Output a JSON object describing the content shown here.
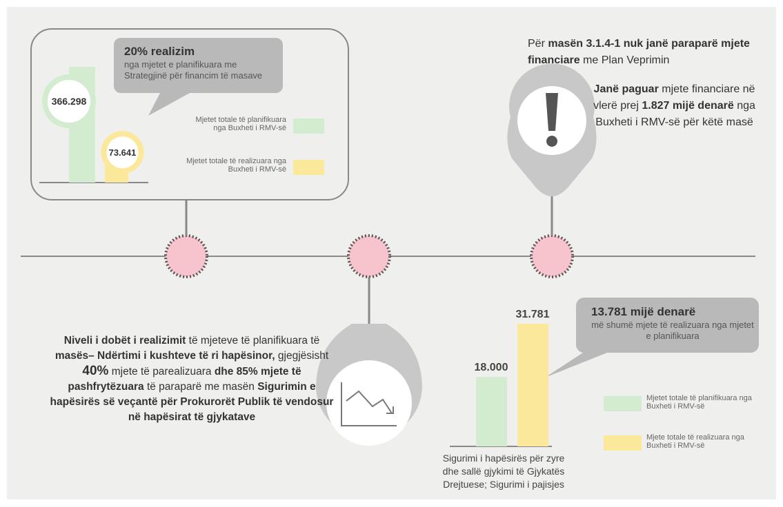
{
  "left_panel": {
    "callout_title": "20% realizim",
    "callout_text": "nga mjetet e planifikuara me Strategjinë për financim të masave",
    "bars": [
      {
        "name": "Mjetet totale të planifikuara nga Buxheti i RMV-së",
        "value": 366298,
        "value_label": "366.298",
        "color": "#d3ebcf"
      },
      {
        "name": "Mjetet totale të realizuara nga Buxheti i RMV-së",
        "value": 73641,
        "value_label": "73.641",
        "color": "#fbe89a"
      }
    ]
  },
  "top_right": {
    "line1": [
      "Për",
      "masën 3.1.4-1 nuk janë paraparë mjete financiare",
      "me Plan Veprimin"
    ],
    "line2": [
      "Janë paguar",
      "mjete financiare në vlerë prej",
      "1.827 mijë denarë",
      "nga Buxheti i RMV-së për këtë masë"
    ]
  },
  "bottom_left": [
    "Niveli i dobët i realizimit",
    "të mjeteve të planifikuara të",
    "masës– Ndërtimi i kushteve të ri hapësinor,",
    "gjegjësisht",
    "40%",
    "mjete të parealizuara",
    "dhe 85% mjete të pashfrytëzuara",
    "të paraparë me masën",
    "Sigurimin e hapësirës së veçantë për Prokurorët Publik të vendosur në hapësirat të gjykatave"
  ],
  "right_panel": {
    "callout_title": "13.781 mijë denarë",
    "callout_text": "më shumë mjete të realizuara nga mjetet e planifikuara",
    "bars": [
      {
        "name": "Mjetet totale të planifikuara nga Buxheti i RMV-së",
        "value": 18000,
        "value_label": "18.000",
        "color": "#d3ebcf"
      },
      {
        "name": "Mjete totale të realizuara nga Buxheti i RMV-së",
        "value": 31781,
        "value_label": "31.781",
        "color": "#fbe89a"
      }
    ],
    "caption": "Sigurimi i hapësirës për zyre dhe sallë gjykimi të Gjykatës Drejtuese; Sigurimi i pajisjes"
  }
}
